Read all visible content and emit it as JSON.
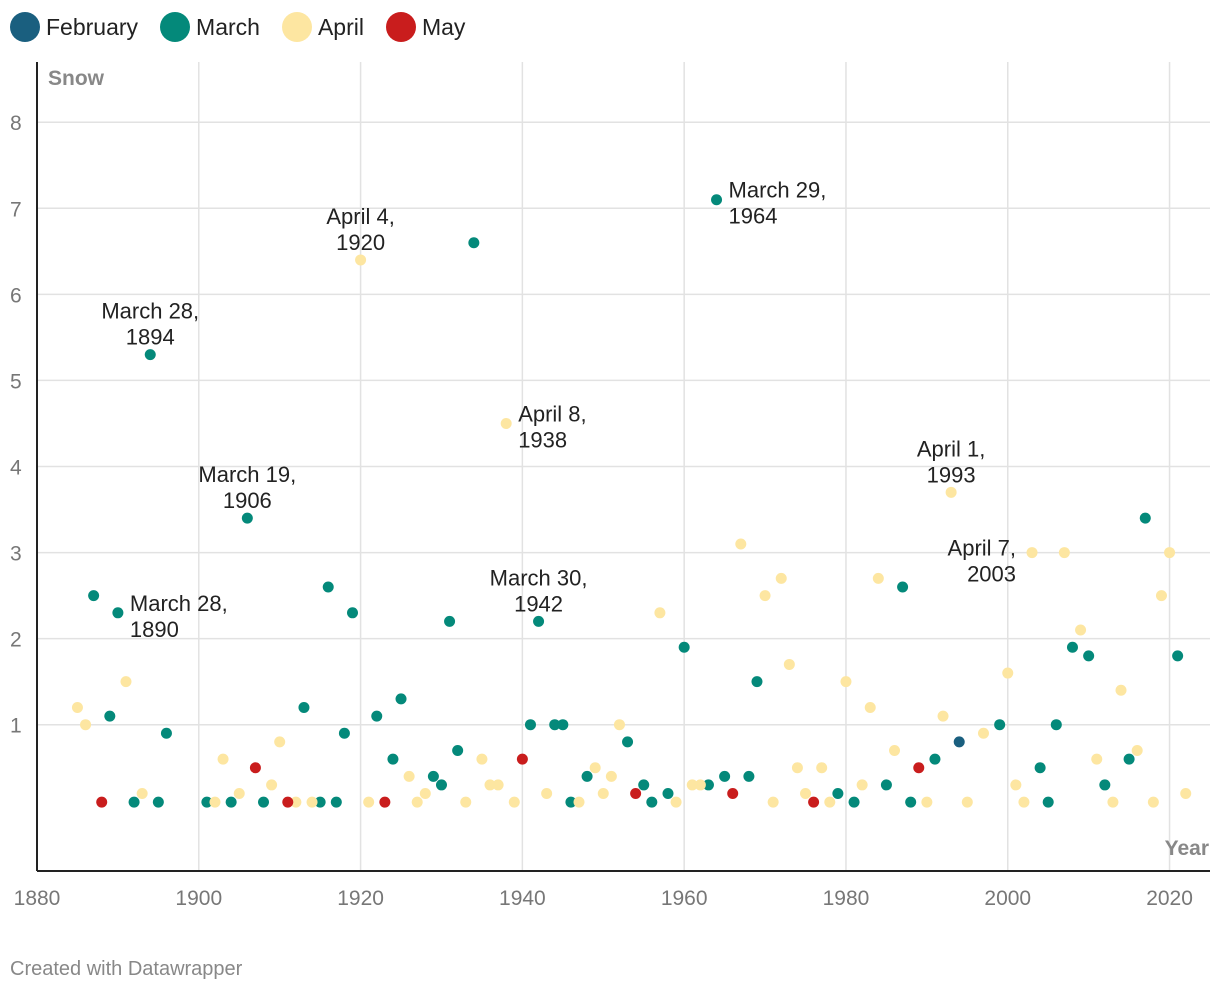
{
  "chart_data": {
    "type": "scatter",
    "xlabel": "Year",
    "ylabel": "Snow",
    "xlim": [
      1880,
      2025
    ],
    "ylim": [
      -0.7,
      8.7
    ],
    "xticks": [
      1880,
      1900,
      1920,
      1940,
      1960,
      1980,
      2000,
      2020
    ],
    "yticks": [
      1,
      2,
      3,
      4,
      5,
      6,
      7,
      8
    ],
    "series": [
      {
        "name": "February",
        "color": "#1a5f7f",
        "points": [
          [
            1994,
            0.8
          ]
        ]
      },
      {
        "name": "March",
        "color": "#04897a",
        "points": [
          [
            1887,
            2.5
          ],
          [
            1889,
            1.1
          ],
          [
            1890,
            2.3
          ],
          [
            1892,
            0.1
          ],
          [
            1894,
            5.3
          ],
          [
            1895,
            0.1
          ],
          [
            1896,
            0.9
          ],
          [
            1901,
            0.1
          ],
          [
            1904,
            0.1
          ],
          [
            1906,
            3.4
          ],
          [
            1908,
            0.1
          ],
          [
            1913,
            1.2
          ],
          [
            1915,
            0.1
          ],
          [
            1916,
            2.6
          ],
          [
            1917,
            0.1
          ],
          [
            1918,
            0.9
          ],
          [
            1919,
            2.3
          ],
          [
            1922,
            1.1
          ],
          [
            1924,
            0.6
          ],
          [
            1925,
            1.3
          ],
          [
            1929,
            0.4
          ],
          [
            1930,
            0.3
          ],
          [
            1931,
            2.2
          ],
          [
            1932,
            0.7
          ],
          [
            1934,
            6.6
          ],
          [
            1941,
            1.0
          ],
          [
            1942,
            2.2
          ],
          [
            1944,
            1.0
          ],
          [
            1945,
            1.0
          ],
          [
            1946,
            0.1
          ],
          [
            1948,
            0.4
          ],
          [
            1953,
            0.8
          ],
          [
            1955,
            0.3
          ],
          [
            1956,
            0.1
          ],
          [
            1958,
            0.2
          ],
          [
            1960,
            1.9
          ],
          [
            1963,
            0.3
          ],
          [
            1964,
            7.1
          ],
          [
            1965,
            0.4
          ],
          [
            1968,
            0.4
          ],
          [
            1969,
            1.5
          ],
          [
            1979,
            0.2
          ],
          [
            1981,
            0.1
          ],
          [
            1985,
            0.3
          ],
          [
            1987,
            2.6
          ],
          [
            1988,
            0.1
          ],
          [
            1991,
            0.6
          ],
          [
            1999,
            1.0
          ],
          [
            2004,
            0.5
          ],
          [
            2005,
            0.1
          ],
          [
            2006,
            1.0
          ],
          [
            2008,
            1.9
          ],
          [
            2010,
            1.8
          ],
          [
            2012,
            0.3
          ],
          [
            2015,
            0.6
          ],
          [
            2017,
            3.4
          ],
          [
            2021,
            1.8
          ]
        ]
      },
      {
        "name": "April",
        "color": "#fde6a1",
        "points": [
          [
            1885,
            1.2
          ],
          [
            1886,
            1.0
          ],
          [
            1891,
            1.5
          ],
          [
            1893,
            0.2
          ],
          [
            1902,
            0.1
          ],
          [
            1903,
            0.6
          ],
          [
            1905,
            0.2
          ],
          [
            1909,
            0.3
          ],
          [
            1910,
            0.8
          ],
          [
            1912,
            0.1
          ],
          [
            1914,
            0.1
          ],
          [
            1920,
            6.4
          ],
          [
            1921,
            0.1
          ],
          [
            1926,
            0.4
          ],
          [
            1927,
            0.1
          ],
          [
            1928,
            0.2
          ],
          [
            1933,
            0.1
          ],
          [
            1935,
            0.6
          ],
          [
            1936,
            0.3
          ],
          [
            1937,
            0.3
          ],
          [
            1938,
            4.5
          ],
          [
            1939,
            0.1
          ],
          [
            1943,
            0.2
          ],
          [
            1947,
            0.1
          ],
          [
            1949,
            0.5
          ],
          [
            1950,
            0.2
          ],
          [
            1951,
            0.4
          ],
          [
            1952,
            1.0
          ],
          [
            1957,
            2.3
          ],
          [
            1959,
            0.1
          ],
          [
            1961,
            0.3
          ],
          [
            1962,
            0.3
          ],
          [
            1967,
            3.1
          ],
          [
            1970,
            2.5
          ],
          [
            1971,
            0.1
          ],
          [
            1972,
            2.7
          ],
          [
            1973,
            1.7
          ],
          [
            1974,
            0.5
          ],
          [
            1975,
            0.2
          ],
          [
            1977,
            0.5
          ],
          [
            1978,
            0.1
          ],
          [
            1980,
            1.5
          ],
          [
            1982,
            0.3
          ],
          [
            1983,
            1.2
          ],
          [
            1984,
            2.7
          ],
          [
            1986,
            0.7
          ],
          [
            1990,
            0.1
          ],
          [
            1992,
            1.1
          ],
          [
            1993,
            3.7
          ],
          [
            1995,
            0.1
          ],
          [
            1997,
            0.9
          ],
          [
            2000,
            1.6
          ],
          [
            2001,
            0.3
          ],
          [
            2002,
            0.1
          ],
          [
            2003,
            3.0
          ],
          [
            2007,
            3.0
          ],
          [
            2009,
            2.1
          ],
          [
            2011,
            0.6
          ],
          [
            2013,
            0.1
          ],
          [
            2014,
            1.4
          ],
          [
            2016,
            0.7
          ],
          [
            2018,
            0.1
          ],
          [
            2019,
            2.5
          ],
          [
            2020,
            3.0
          ],
          [
            2022,
            0.2
          ]
        ]
      },
      {
        "name": "May",
        "color": "#c91d1d",
        "points": [
          [
            1888,
            0.1
          ],
          [
            1907,
            0.5
          ],
          [
            1911,
            0.1
          ],
          [
            1923,
            0.1
          ],
          [
            1940,
            0.6
          ],
          [
            1954,
            0.2
          ],
          [
            1966,
            0.2
          ],
          [
            1976,
            0.1
          ],
          [
            1989,
            0.5
          ]
        ]
      }
    ],
    "annotations": [
      {
        "x": 1894,
        "y": 5.3,
        "lines": [
          "March 28,",
          "1894"
        ],
        "placement": "above"
      },
      {
        "x": 1890,
        "y": 2.3,
        "lines": [
          "March 28,",
          "1890"
        ],
        "placement": "right"
      },
      {
        "x": 1906,
        "y": 3.4,
        "lines": [
          "March 19,",
          "1906"
        ],
        "placement": "above"
      },
      {
        "x": 1920,
        "y": 6.4,
        "lines": [
          "April 4,",
          "1920"
        ],
        "placement": "above"
      },
      {
        "x": 1938,
        "y": 4.5,
        "lines": [
          "April 8,",
          "1938"
        ],
        "placement": "right"
      },
      {
        "x": 1942,
        "y": 2.2,
        "lines": [
          "March 30,",
          "1942"
        ],
        "placement": "above"
      },
      {
        "x": 1964,
        "y": 7.1,
        "lines": [
          "March 29,",
          "1964"
        ],
        "placement": "right"
      },
      {
        "x": 1993,
        "y": 3.7,
        "lines": [
          "April 1,",
          "1993"
        ],
        "placement": "above"
      },
      {
        "x": 2003,
        "y": 3.0,
        "lines": [
          "April 7,",
          "2003"
        ],
        "placement": "left"
      }
    ]
  },
  "footer": {
    "credit": "Created with Datawrapper"
  }
}
